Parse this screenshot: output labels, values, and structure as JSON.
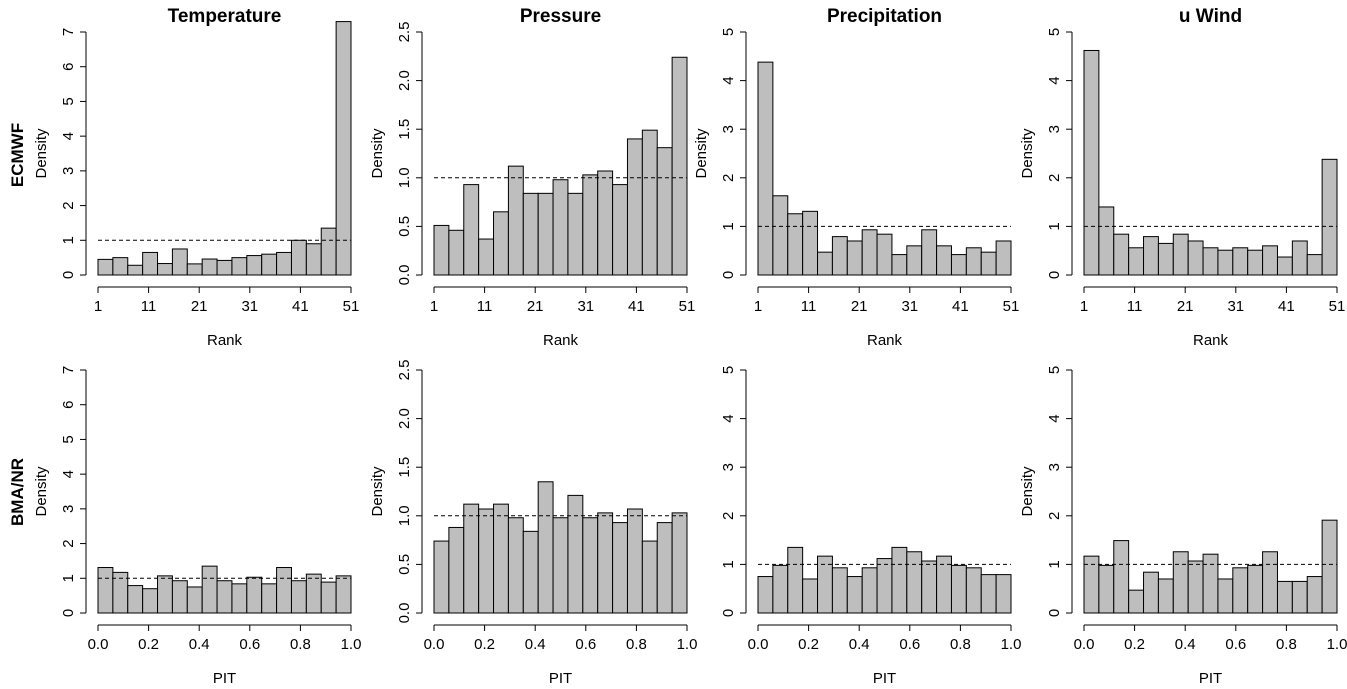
{
  "figure": {
    "row_labels": [
      "ECMWF",
      "BMA/NR"
    ],
    "column_titles": [
      "Temperature",
      "Pressure",
      "Precipitation",
      "u Wind"
    ]
  },
  "colors": {
    "bar_fill": "#bebebe",
    "bar_edge": "#000000",
    "reference_line": "#000000"
  },
  "chart_data": [
    {
      "type": "bar",
      "row": "ECMWF",
      "column": "Temperature",
      "title": "Temperature",
      "xlabel": "Rank",
      "ylabel": "Density",
      "xlim": [
        1,
        51
      ],
      "ylim": [
        0,
        7
      ],
      "xticks": [
        1,
        11,
        21,
        31,
        41,
        51
      ],
      "yticks": [
        0,
        1,
        2,
        3,
        4,
        5,
        6,
        7
      ],
      "ytick_labels": [
        "0",
        "1",
        "2",
        "3",
        "4",
        "5",
        "6",
        "7"
      ],
      "reference_line": 1,
      "values": [
        0.45,
        0.5,
        0.28,
        0.65,
        0.33,
        0.75,
        0.32,
        0.46,
        0.42,
        0.5,
        0.56,
        0.6,
        0.65,
        1.0,
        0.9,
        1.35,
        7.3
      ]
    },
    {
      "type": "bar",
      "row": "ECMWF",
      "column": "Pressure",
      "title": "Pressure",
      "xlabel": "Rank",
      "ylabel": "Density",
      "xlim": [
        1,
        51
      ],
      "ylim": [
        0,
        2.5
      ],
      "xticks": [
        1,
        11,
        21,
        31,
        41,
        51
      ],
      "yticks": [
        0,
        0.5,
        1,
        1.5,
        2,
        2.5
      ],
      "ytick_labels": [
        "0.0",
        "0.5",
        "1.0",
        "1.5",
        "2.0",
        "2.5"
      ],
      "reference_line": 1,
      "values": [
        0.51,
        0.46,
        0.93,
        0.37,
        0.65,
        1.12,
        0.84,
        0.84,
        0.98,
        0.84,
        1.03,
        1.07,
        0.93,
        1.4,
        1.49,
        1.31,
        2.24
      ]
    },
    {
      "type": "bar",
      "row": "ECMWF",
      "column": "Precipitation",
      "title": "Precipitation",
      "xlabel": "Rank",
      "ylabel": "Density",
      "xlim": [
        1,
        51
      ],
      "ylim": [
        0,
        5
      ],
      "xticks": [
        1,
        11,
        21,
        31,
        41,
        51
      ],
      "yticks": [
        0,
        1,
        2,
        3,
        4,
        5
      ],
      "ytick_labels": [
        "0",
        "1",
        "2",
        "3",
        "4",
        "5"
      ],
      "reference_line": 1,
      "values": [
        4.38,
        1.63,
        1.26,
        1.31,
        0.47,
        0.79,
        0.7,
        0.93,
        0.84,
        0.42,
        0.6,
        0.93,
        0.6,
        0.42,
        0.56,
        0.47,
        0.7
      ]
    },
    {
      "type": "bar",
      "row": "ECMWF",
      "column": "u Wind",
      "title": "u Wind",
      "xlabel": "Rank",
      "ylabel": "Density",
      "xlim": [
        1,
        51
      ],
      "ylim": [
        0,
        5
      ],
      "xticks": [
        1,
        11,
        21,
        31,
        41,
        51
      ],
      "yticks": [
        0,
        1,
        2,
        3,
        4,
        5
      ],
      "ytick_labels": [
        "0",
        "1",
        "2",
        "3",
        "4",
        "5"
      ],
      "reference_line": 1,
      "values": [
        4.62,
        1.4,
        0.84,
        0.56,
        0.79,
        0.65,
        0.84,
        0.7,
        0.56,
        0.51,
        0.56,
        0.51,
        0.6,
        0.37,
        0.7,
        0.42,
        2.38
      ]
    },
    {
      "type": "bar",
      "row": "BMA/NR",
      "column": "Temperature",
      "title": "",
      "xlabel": "PIT",
      "ylabel": "Density",
      "xlim": [
        0,
        1
      ],
      "ylim": [
        0,
        7
      ],
      "xticks": [
        0,
        0.2,
        0.4,
        0.6,
        0.8,
        1
      ],
      "xtick_labels": [
        "0.0",
        "0.2",
        "0.4",
        "0.6",
        "0.8",
        "1.0"
      ],
      "yticks": [
        0,
        1,
        2,
        3,
        4,
        5,
        6,
        7
      ],
      "ytick_labels": [
        "0",
        "1",
        "2",
        "3",
        "4",
        "5",
        "6",
        "7"
      ],
      "reference_line": 1,
      "values": [
        1.31,
        1.17,
        0.79,
        0.7,
        1.07,
        0.93,
        0.75,
        1.35,
        0.93,
        0.84,
        1.03,
        0.84,
        1.31,
        0.93,
        1.12,
        0.89,
        1.07
      ]
    },
    {
      "type": "bar",
      "row": "BMA/NR",
      "column": "Pressure",
      "title": "",
      "xlabel": "PIT",
      "ylabel": "Density",
      "xlim": [
        0,
        1
      ],
      "ylim": [
        0,
        2.5
      ],
      "xticks": [
        0,
        0.2,
        0.4,
        0.6,
        0.8,
        1
      ],
      "xtick_labels": [
        "0.0",
        "0.2",
        "0.4",
        "0.6",
        "0.8",
        "1.0"
      ],
      "yticks": [
        0,
        0.5,
        1,
        1.5,
        2,
        2.5
      ],
      "ytick_labels": [
        "0.0",
        "0.5",
        "1.0",
        "1.5",
        "2.0",
        "2.5"
      ],
      "reference_line": 1,
      "values": [
        0.74,
        0.88,
        1.12,
        1.07,
        1.12,
        0.98,
        0.84,
        1.35,
        0.98,
        1.21,
        0.98,
        1.03,
        0.93,
        1.07,
        0.74,
        0.93,
        1.03
      ]
    },
    {
      "type": "bar",
      "row": "BMA/NR",
      "column": "Precipitation",
      "title": "",
      "xlabel": "PIT",
      "ylabel": "",
      "xlim": [
        0,
        1
      ],
      "ylim": [
        0,
        5
      ],
      "xticks": [
        0,
        0.2,
        0.4,
        0.6,
        0.8,
        1
      ],
      "xtick_labels": [
        "0.0",
        "0.2",
        "0.4",
        "0.6",
        "0.8",
        "1.0"
      ],
      "yticks": [
        0,
        1,
        2,
        3,
        4,
        5
      ],
      "ytick_labels": [
        "0",
        "1",
        "2",
        "3",
        "4",
        "5"
      ],
      "reference_line": 1,
      "values": [
        0.75,
        0.98,
        1.35,
        0.7,
        1.17,
        0.93,
        0.75,
        0.93,
        1.12,
        1.35,
        1.26,
        1.07,
        1.17,
        0.98,
        0.93,
        0.79,
        0.79
      ]
    },
    {
      "type": "bar",
      "row": "BMA/NR",
      "column": "u Wind",
      "title": "",
      "xlabel": "PIT",
      "ylabel": "Density",
      "xlim": [
        0,
        1
      ],
      "ylim": [
        0,
        5
      ],
      "xticks": [
        0,
        0.2,
        0.4,
        0.6,
        0.8,
        1
      ],
      "xtick_labels": [
        "0.0",
        "0.2",
        "0.4",
        "0.6",
        "0.8",
        "1.0"
      ],
      "yticks": [
        0,
        1,
        2,
        3,
        4,
        5
      ],
      "ytick_labels": [
        "0",
        "1",
        "2",
        "3",
        "4",
        "5"
      ],
      "reference_line": 1,
      "values": [
        1.17,
        0.98,
        1.49,
        0.47,
        0.84,
        0.7,
        1.26,
        1.07,
        1.21,
        0.7,
        0.93,
        0.98,
        1.26,
        0.65,
        0.65,
        0.75,
        1.91
      ]
    }
  ]
}
